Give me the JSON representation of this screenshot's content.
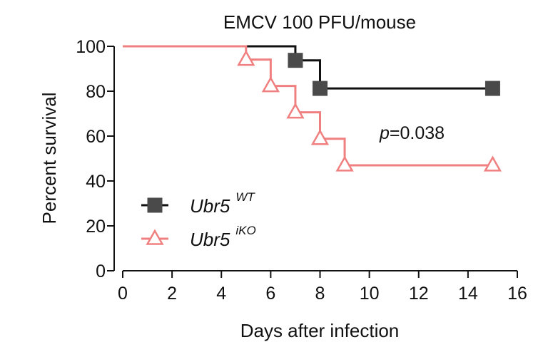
{
  "chart_data": {
    "type": "line",
    "subtype": "kaplan-meier-survival",
    "title": "EMCV 100 PFU/mouse",
    "xlabel": "Days after infection",
    "ylabel": "Percent survival",
    "xlim": [
      0,
      16
    ],
    "ylim": [
      0,
      100
    ],
    "xticks": [
      0,
      2,
      4,
      6,
      8,
      10,
      12,
      14,
      16
    ],
    "yticks": [
      0,
      20,
      40,
      60,
      80,
      100
    ],
    "grid": false,
    "legend_position": "bottom-left",
    "annotation": {
      "p_italic": "p",
      "p_rest": "=0.038"
    },
    "series": [
      {
        "name_base": "Ubr5",
        "name_sup": "WT",
        "color": "#111111",
        "marker_color": "#4a4a4a",
        "marker": "square",
        "steps": [
          {
            "x": 0,
            "y": 100
          },
          {
            "x": 7,
            "y": 93.75
          },
          {
            "x": 8,
            "y": 81.25
          },
          {
            "x": 15,
            "y": 81.25
          }
        ],
        "markers": [
          {
            "x": 7,
            "y": 93.75
          },
          {
            "x": 8,
            "y": 81.25
          },
          {
            "x": 15,
            "y": 81.25
          }
        ]
      },
      {
        "name_base": "Ubr5",
        "name_sup": "iKO",
        "color": "#f08080",
        "marker_color": "#f08080",
        "marker": "triangle-open",
        "steps": [
          {
            "x": 0,
            "y": 100
          },
          {
            "x": 5,
            "y": 94.1
          },
          {
            "x": 6,
            "y": 82.35
          },
          {
            "x": 7,
            "y": 70.6
          },
          {
            "x": 8,
            "y": 58.8
          },
          {
            "x": 9,
            "y": 47
          },
          {
            "x": 15,
            "y": 47
          }
        ],
        "markers": [
          {
            "x": 5,
            "y": 94.1
          },
          {
            "x": 6,
            "y": 82.35
          },
          {
            "x": 7,
            "y": 70.6
          },
          {
            "x": 8,
            "y": 58.8
          },
          {
            "x": 9,
            "y": 47
          },
          {
            "x": 15,
            "y": 47
          }
        ]
      }
    ]
  }
}
